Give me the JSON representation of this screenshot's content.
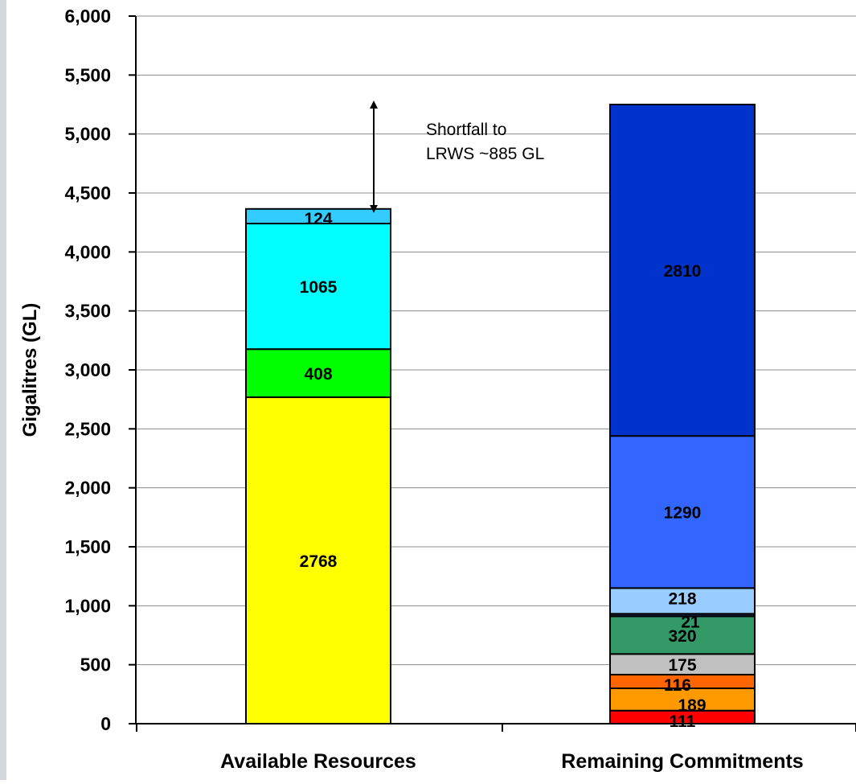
{
  "chart_data": {
    "type": "bar",
    "stacked": true,
    "ylabel": "Gigalitres (GL)",
    "ylim": [
      0,
      6000
    ],
    "yticks": [
      "0",
      "500",
      "1,000",
      "1,500",
      "2,000",
      "2,500",
      "3,000",
      "3,500",
      "4,000",
      "4,500",
      "5,000",
      "5,500",
      "6,000"
    ],
    "ytick_values": [
      0,
      500,
      1000,
      1500,
      2000,
      2500,
      3000,
      3500,
      4000,
      4500,
      5000,
      5500,
      6000
    ],
    "grid": true,
    "categories": [
      "Available Resources",
      "Remaining Commitments"
    ],
    "bars": [
      {
        "category": "Available Resources",
        "segments": [
          {
            "value": 2768,
            "label": "2768",
            "color": "#ffff00"
          },
          {
            "value": 408,
            "label": "408",
            "color": "#00ff00"
          },
          {
            "value": 1065,
            "label": "1065",
            "color": "#00ffff"
          },
          {
            "value": 124,
            "label": "124",
            "color": "#33ccff"
          }
        ]
      },
      {
        "category": "Remaining Commitments",
        "segments": [
          {
            "value": 111,
            "label": "111",
            "color": "#ff0000"
          },
          {
            "value": 189,
            "label": "189",
            "color": "#ff9900"
          },
          {
            "value": 116,
            "label": "116",
            "color": "#ff6600"
          },
          {
            "value": 175,
            "label": "175",
            "color": "#c0c0c0"
          },
          {
            "value": 320,
            "label": "320",
            "color": "#339966"
          },
          {
            "value": 21,
            "label": "21",
            "color": "#1f2a44"
          },
          {
            "value": 218,
            "label": "218",
            "color": "#99ccff"
          },
          {
            "value": 1290,
            "label": "1290",
            "color": "#3366ff"
          },
          {
            "value": 2810,
            "label": "2810",
            "color": "#0033cc"
          }
        ]
      }
    ],
    "annotations": [
      {
        "text_lines": [
          "Shortfall to",
          "LRWS ~885 GL"
        ],
        "arrow_from": 4365,
        "arrow_to": 5250
      }
    ]
  }
}
